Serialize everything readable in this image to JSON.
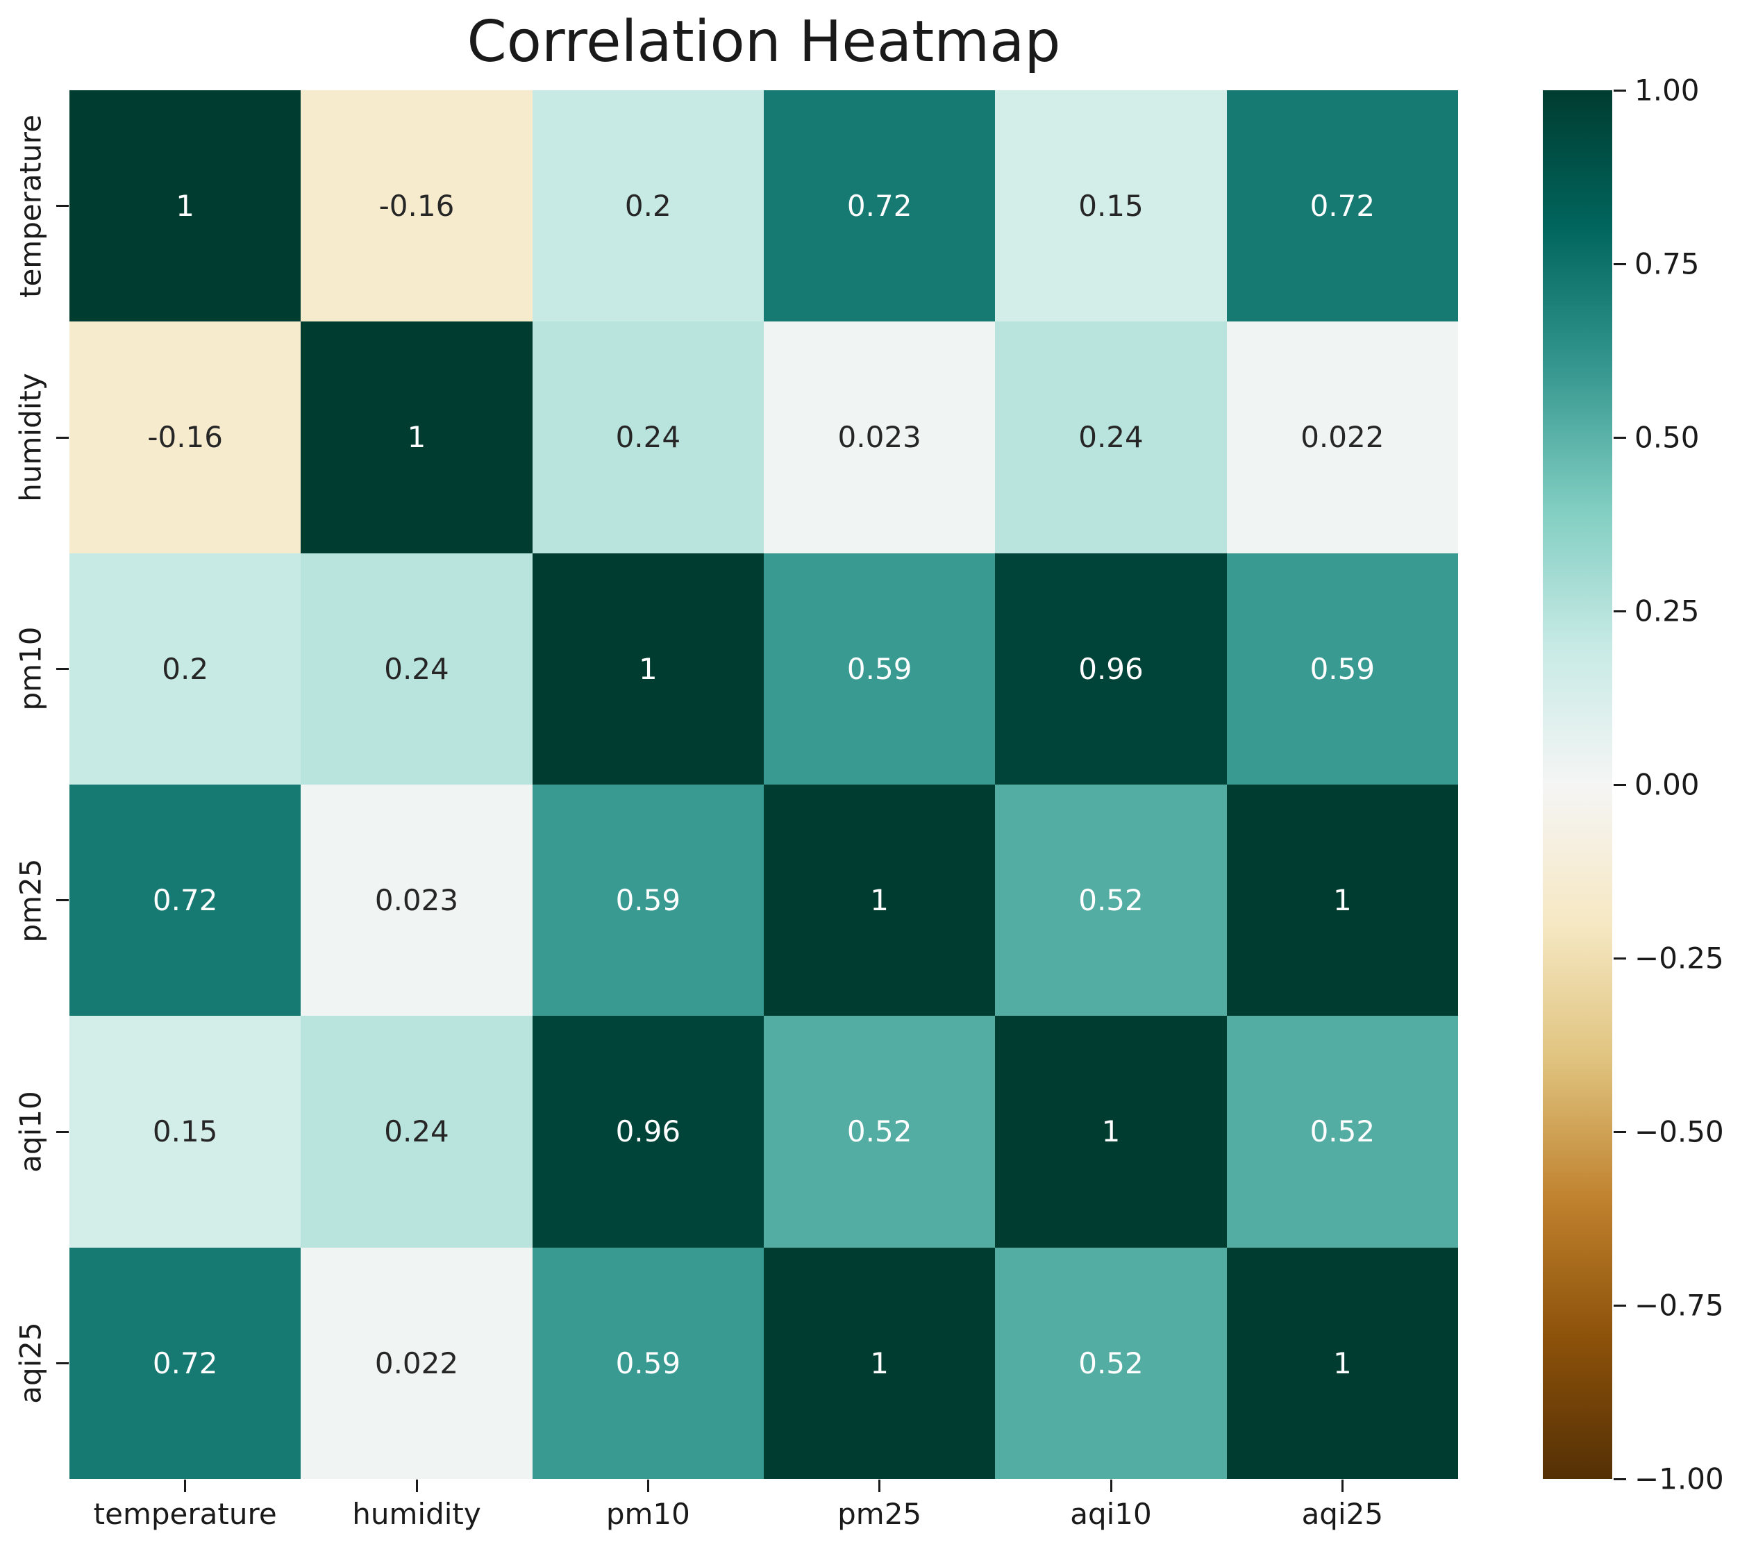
{
  "title": "Correlation Heatmap",
  "chart_data": {
    "type": "heatmap",
    "title": "Correlation Heatmap",
    "categories": [
      "temperature",
      "humidity",
      "pm10",
      "pm25",
      "aqi10",
      "aqi25"
    ],
    "x_tick_labels": [
      "temperature",
      "humidity",
      "pm10",
      "pm25",
      "aqi10",
      "aqi25"
    ],
    "y_tick_labels": [
      "temperature",
      "humidity",
      "pm10",
      "pm25",
      "aqi10",
      "aqi25"
    ],
    "matrix": [
      [
        1,
        -0.16,
        0.2,
        0.72,
        0.15,
        0.72
      ],
      [
        -0.16,
        1,
        0.24,
        0.023,
        0.24,
        0.022
      ],
      [
        0.2,
        0.24,
        1,
        0.59,
        0.96,
        0.59
      ],
      [
        0.72,
        0.023,
        0.59,
        1,
        0.52,
        1
      ],
      [
        0.15,
        0.24,
        0.96,
        0.52,
        1,
        0.52
      ],
      [
        0.72,
        0.022,
        0.59,
        1,
        0.52,
        1
      ]
    ],
    "cell_labels": [
      [
        "1",
        "-0.16",
        "0.2",
        "0.72",
        "0.15",
        "0.72"
      ],
      [
        "-0.16",
        "1",
        "0.24",
        "0.023",
        "0.24",
        "0.022"
      ],
      [
        "0.2",
        "0.24",
        "1",
        "0.59",
        "0.96",
        "0.59"
      ],
      [
        "0.72",
        "0.023",
        "0.59",
        "1",
        "0.52",
        "1"
      ],
      [
        "0.15",
        "0.24",
        "0.96",
        "0.52",
        "1",
        "0.52"
      ],
      [
        "0.72",
        "0.022",
        "0.59",
        "1",
        "0.52",
        "1"
      ]
    ],
    "colormap": "BrBG",
    "vmin": -1,
    "vmax": 1,
    "colorbar_tick_labels": [
      "1.00",
      "0.75",
      "0.50",
      "0.25",
      "0.00",
      "−0.25",
      "−0.50",
      "−0.75",
      "−1.00"
    ],
    "colorbar_position": "right",
    "grid": false,
    "colors": {
      "cmap_negative_end": "#543005",
      "cmap_zero": "#f5f5f5",
      "cmap_positive_end": "#003c30",
      "annotation_dark": "#262626",
      "annotation_light": "#ffffff",
      "background": "#ffffff"
    }
  }
}
